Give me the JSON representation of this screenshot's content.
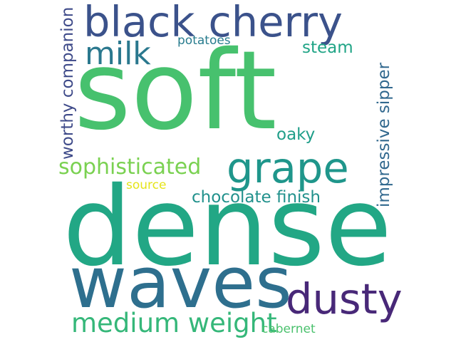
{
  "words": {
    "soft": {
      "text": "soft",
      "color": "#47c16e"
    },
    "dense": {
      "text": "dense",
      "color": "#22a785"
    },
    "waves": {
      "text": "waves",
      "color": "#2e6f8e"
    },
    "black_cherry": {
      "text": "black cherry",
      "color": "#3b528b"
    },
    "grape": {
      "text": "grape",
      "color": "#1f968b"
    },
    "milk": {
      "text": "milk",
      "color": "#2a788e"
    },
    "dusty": {
      "text": "dusty",
      "color": "#482878"
    },
    "medium_weight": {
      "text": "medium weight",
      "color": "#35b779"
    },
    "sophisticated": {
      "text": "sophisticated",
      "color": "#7ad151"
    },
    "chocolate": {
      "text": "chocolate finish",
      "color": "#21918c"
    },
    "worthy": {
      "text": "worthy companion",
      "color": "#3e4a89"
    },
    "impressive": {
      "text": "impressive sipper",
      "color": "#31688e"
    },
    "oaky": {
      "text": "oaky",
      "color": "#1f9e89"
    },
    "steam": {
      "text": "steam",
      "color": "#20a486"
    },
    "potatoes": {
      "text": "potatoes",
      "color": "#287c8e"
    },
    "source": {
      "text": "source",
      "color": "#e5e419"
    },
    "cabernet": {
      "text": "cabernet",
      "color": "#4ac16d"
    }
  }
}
